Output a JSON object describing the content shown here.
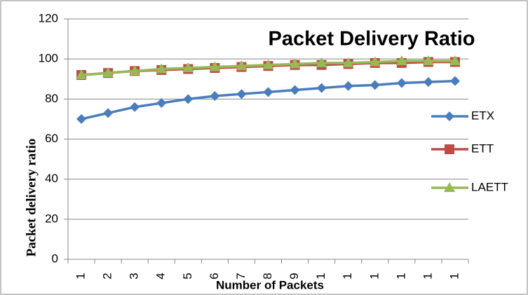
{
  "chart_data": {
    "type": "line",
    "title": "Packet Delivery Ratio",
    "x_label": "Number of Packets",
    "y_label": "Packet delivery ratio",
    "categories": [
      "1",
      "2",
      "3",
      "4",
      "5",
      "6",
      "7",
      "8",
      "9",
      "1",
      "1",
      "1",
      "1",
      "1",
      "1"
    ],
    "series": [
      {
        "name": "ETX",
        "color": "#4a7ebb",
        "values": [
          70,
          73,
          76,
          78,
          80,
          81.5,
          82.5,
          83.5,
          84.5,
          85.5,
          86.5,
          87,
          88,
          88.5,
          89
        ]
      },
      {
        "name": "ETT",
        "color": "#be4b48",
        "values": [
          92,
          93,
          94,
          94.5,
          95,
          95.5,
          96,
          96.5,
          97,
          97,
          97.5,
          98,
          98,
          98.5,
          98.5
        ]
      },
      {
        "name": "LAETT",
        "color": "#98b954",
        "values": [
          92,
          93,
          94,
          95,
          95.5,
          96,
          96.5,
          97,
          97.5,
          98,
          98,
          98.5,
          99,
          99,
          99
        ]
      }
    ],
    "ylim": [
      0,
      120
    ],
    "yticks": [
      0,
      20,
      40,
      60,
      80,
      100,
      120
    ],
    "grid": true,
    "legend": "right"
  }
}
